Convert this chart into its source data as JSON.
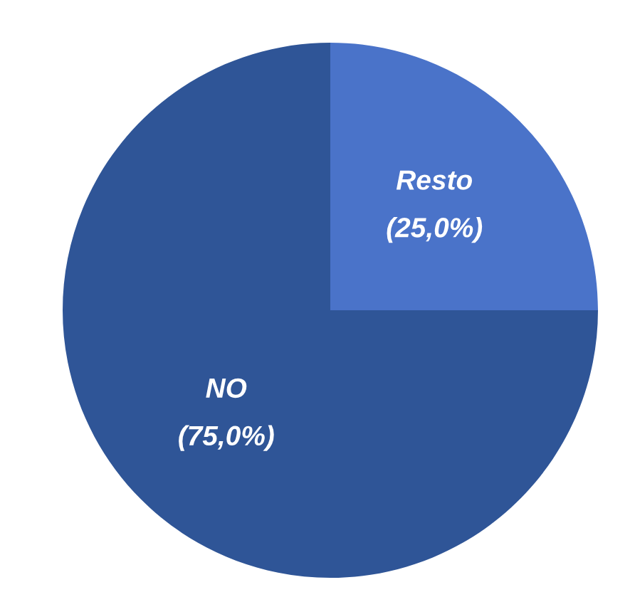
{
  "chart_data": {
    "type": "pie",
    "categories": [
      "Resto",
      "NO"
    ],
    "values": [
      25,
      75
    ],
    "colors": [
      "#4a73c9",
      "#2f5597"
    ],
    "value_labels": [
      "(25,0%)",
      "(75,0%)"
    ]
  }
}
